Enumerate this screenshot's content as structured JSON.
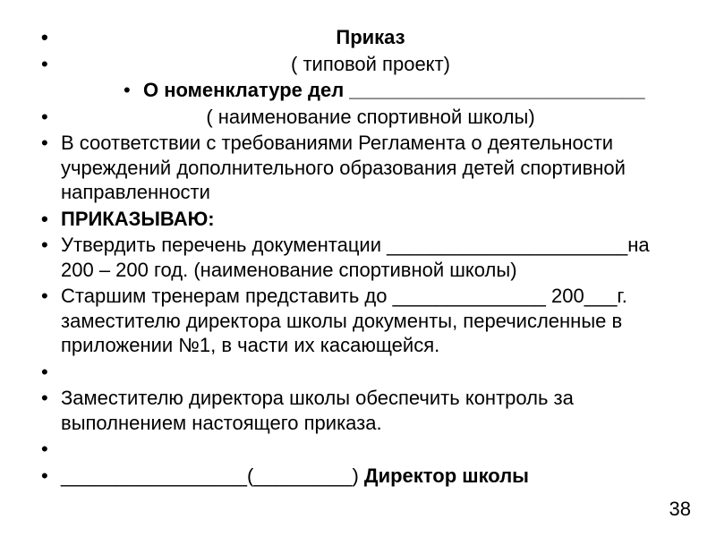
{
  "type": "document-slide",
  "background_color": "#ffffff",
  "text_color": "#000000",
  "font_family": "Arial",
  "base_font_size_pt": 16,
  "bullet_char": "•",
  "page_number": "38",
  "bullets": {
    "l1": "Приказ",
    "l2": "( типовой проект)",
    "l3": "О номенклатуре дел ___________________________",
    "l4": "( наименование спортивной школы)",
    "l5": "В соответствии с требованиями Регламента о деятельности учреждений дополнительного образования детей спортивной направленности",
    "l6": "ПРИКАЗЫВАЮ:",
    "l7": "Утвердить перечень документации ______________________на 200 – 200 год.                                               (наименование спортивной школы)",
    "l8": "Старшим  тренерам представить до ______________ 200___г.  заместителю директора школы документы, перечисленные в приложении №1, в части их касающейся.",
    "l9": "",
    "l10": "Заместителю директора школы обеспечить контроль за выполнением настоящего приказа.",
    "l11": "",
    "l12_pre": "_________________(_________)                            ",
    "l12_bold": "Директор школы"
  }
}
